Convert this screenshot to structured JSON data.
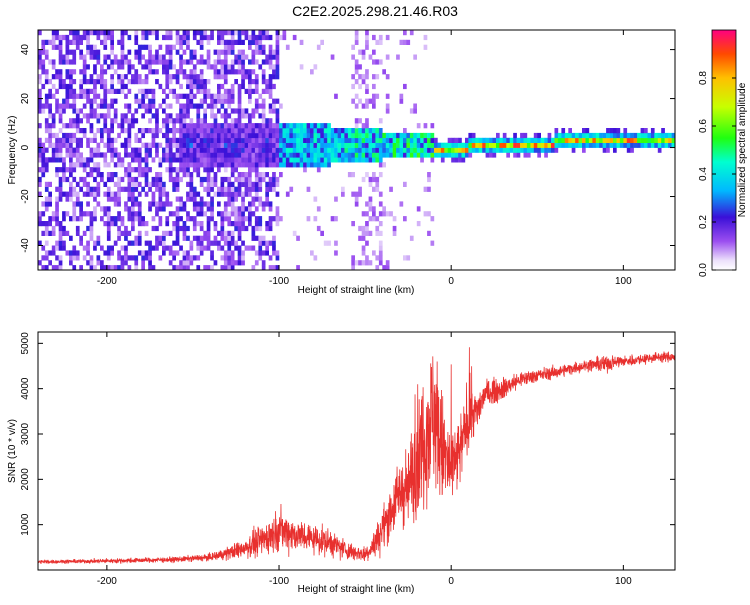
{
  "page_title": "C2E2.2025.298.21.46.R03",
  "chart_data": [
    {
      "type": "heatmap",
      "title": "C2E2.2025.298.21.46.R03",
      "xlabel": "Height of straight line (km)",
      "ylabel": "Frequency (Hz)",
      "xlim": [
        -240,
        130
      ],
      "ylim": [
        -50,
        48
      ],
      "x_ticks": [
        -200,
        -100,
        0,
        100
      ],
      "x_tick_labels": [
        "-200",
        "-100",
        "0",
        "100"
      ],
      "y_ticks": [
        -40,
        -20,
        0,
        20,
        40
      ],
      "y_tick_labels": [
        "-40",
        "-20",
        "0",
        "20",
        "40"
      ],
      "colorbar": {
        "label": "Normalized spectral amplitude",
        "range": [
          0,
          1
        ],
        "ticks": [
          0.0,
          0.2,
          0.4,
          0.6,
          0.8
        ],
        "tick_labels": [
          "0.0",
          "0.2",
          "0.4",
          "0.6",
          "0.8"
        ],
        "colormap": "rainbow"
      },
      "features": {
        "broadband_noise_x_range": [
          -240,
          -100
        ],
        "transition_x_range": [
          -100,
          -10
        ],
        "dominant_line_x_range": [
          -10,
          130
        ],
        "dominant_line_frequency_hz": 0,
        "dominant_line_peak_amplitude": 0.95
      }
    },
    {
      "type": "line",
      "title": "",
      "xlabel": "Height of straight line (km)",
      "ylabel": "SNR (10 * v/v)",
      "xlim": [
        -240,
        130
      ],
      "ylim": [
        0,
        5250
      ],
      "x_ticks": [
        -200,
        -100,
        0,
        100
      ],
      "x_tick_labels": [
        "-200",
        "-100",
        "0",
        "100"
      ],
      "y_ticks": [
        1000,
        2000,
        3000,
        4000,
        5000
      ],
      "y_tick_labels": [
        "1000",
        "2000",
        "3000",
        "4000",
        "5000"
      ],
      "series": [
        {
          "name": "SNR",
          "color": "#e8302e",
          "x": [
            -240,
            -200,
            -160,
            -140,
            -125,
            -110,
            -100,
            -90,
            -80,
            -70,
            -60,
            -50,
            -45,
            -40,
            -35,
            -30,
            -25,
            -20,
            -15,
            -10,
            -5,
            0,
            5,
            10,
            15,
            20,
            30,
            40,
            50,
            60,
            70,
            80,
            90,
            95,
            100,
            110,
            120,
            130
          ],
          "values": [
            180,
            200,
            230,
            280,
            420,
            650,
            900,
            780,
            700,
            600,
            420,
            350,
            550,
            900,
            1300,
            1700,
            1850,
            2500,
            3000,
            3500,
            2600,
            2200,
            2600,
            3400,
            3500,
            3900,
            4000,
            4200,
            4300,
            4350,
            4450,
            4520,
            4550,
            4600,
            4600,
            4650,
            4700,
            4700
          ],
          "noise": [
            40,
            50,
            60,
            80,
            180,
            350,
            450,
            380,
            320,
            300,
            200,
            180,
            300,
            450,
            600,
            750,
            900,
            1300,
            1500,
            1700,
            1300,
            900,
            800,
            700,
            450,
            300,
            250,
            180,
            150,
            140,
            130,
            130,
            200,
            150,
            130,
            120,
            110,
            110
          ]
        }
      ]
    }
  ]
}
